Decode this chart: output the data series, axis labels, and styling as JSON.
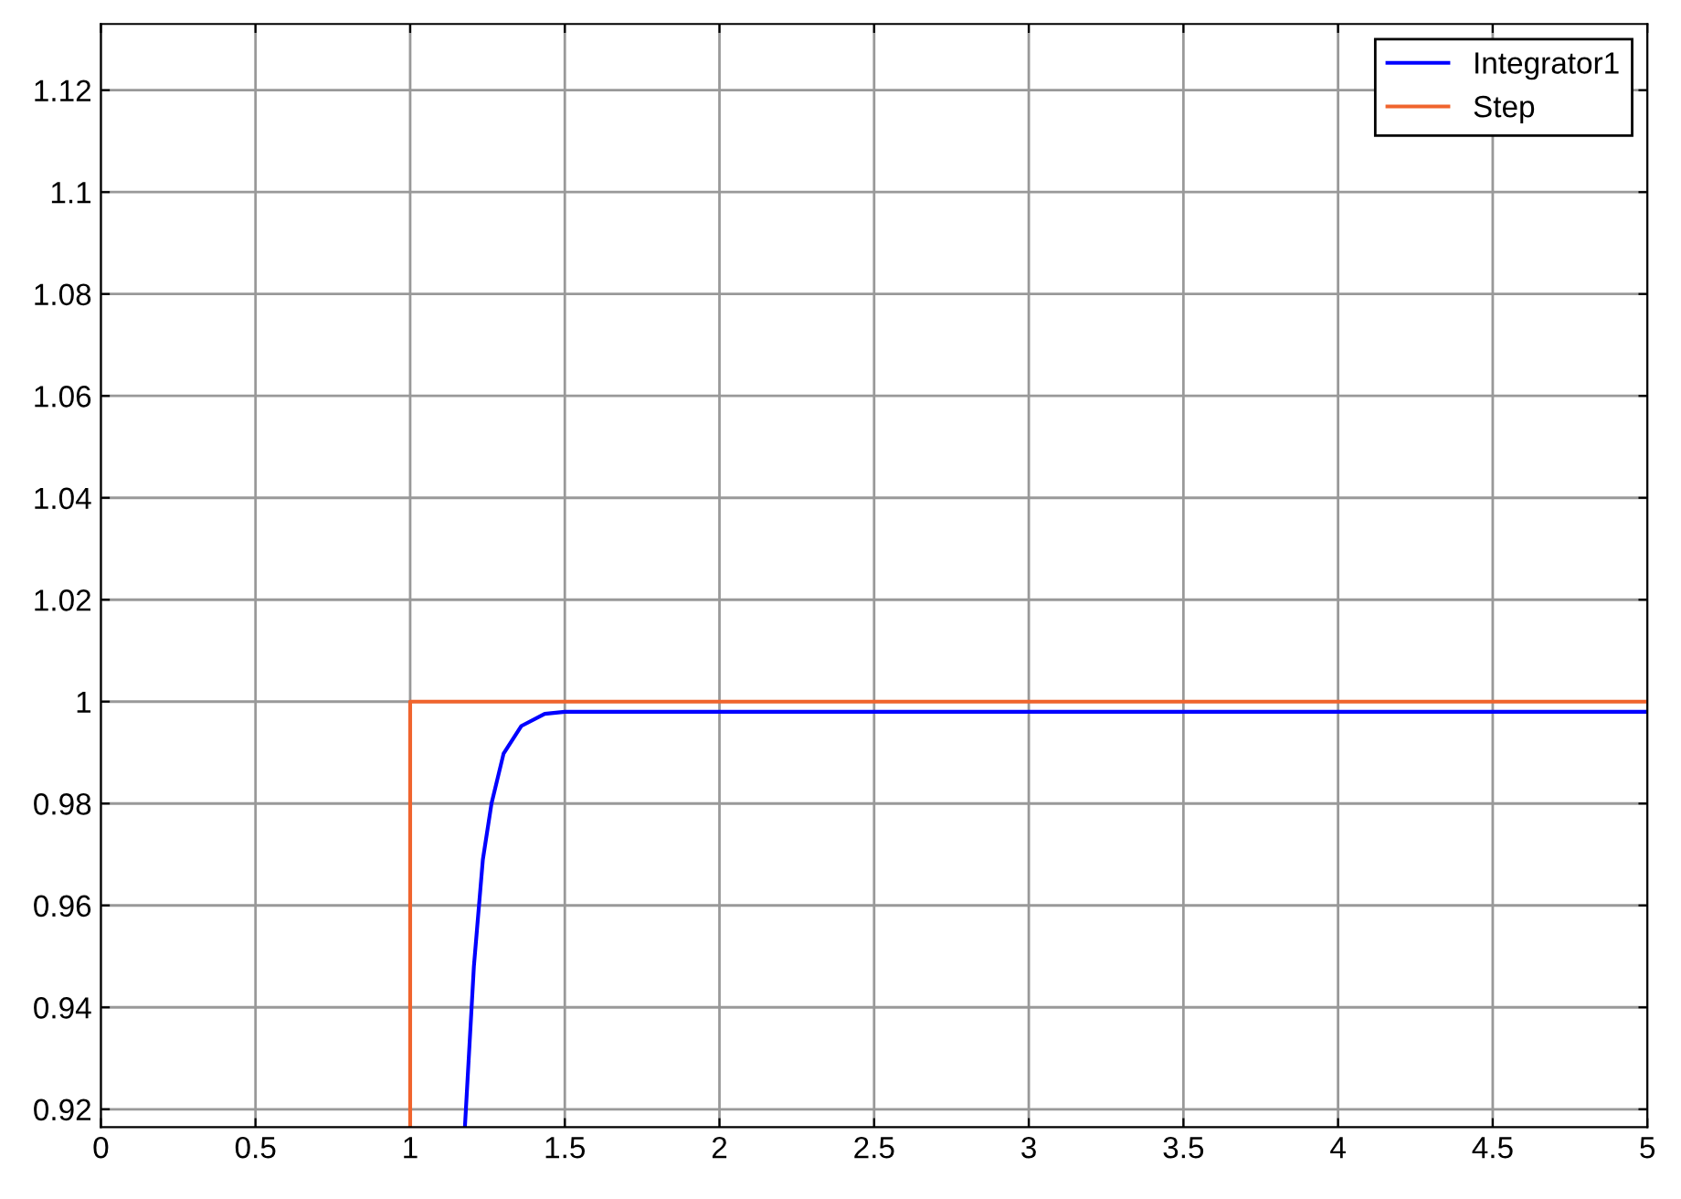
{
  "chart_data": {
    "type": "line",
    "series": [
      {
        "name": "Integrator1",
        "color": "#0000ff",
        "x": [
          1.177,
          1.206,
          1.235,
          1.263,
          1.302,
          1.359,
          1.435,
          1.5,
          2,
          5
        ],
        "values": [
          0.9165,
          0.948,
          0.969,
          0.98,
          0.9898,
          0.9952,
          0.9976,
          0.998,
          0.998,
          0.998
        ]
      },
      {
        "name": "Step",
        "color": "#f0642d",
        "x": [
          1,
          1,
          5
        ],
        "values": [
          0.9165,
          1,
          1
        ]
      }
    ],
    "xlim": [
      0,
      5
    ],
    "xticks": [
      0,
      0.5,
      1,
      1.5,
      2,
      2.5,
      3,
      3.5,
      4,
      4.5,
      5
    ],
    "ylim": [
      0.9165,
      1.133
    ],
    "yticks": [
      0.92,
      0.94,
      0.96,
      0.98,
      1,
      1.02,
      1.04,
      1.06,
      1.08,
      1.1,
      1.12
    ],
    "grid": true,
    "legend": "top right"
  }
}
